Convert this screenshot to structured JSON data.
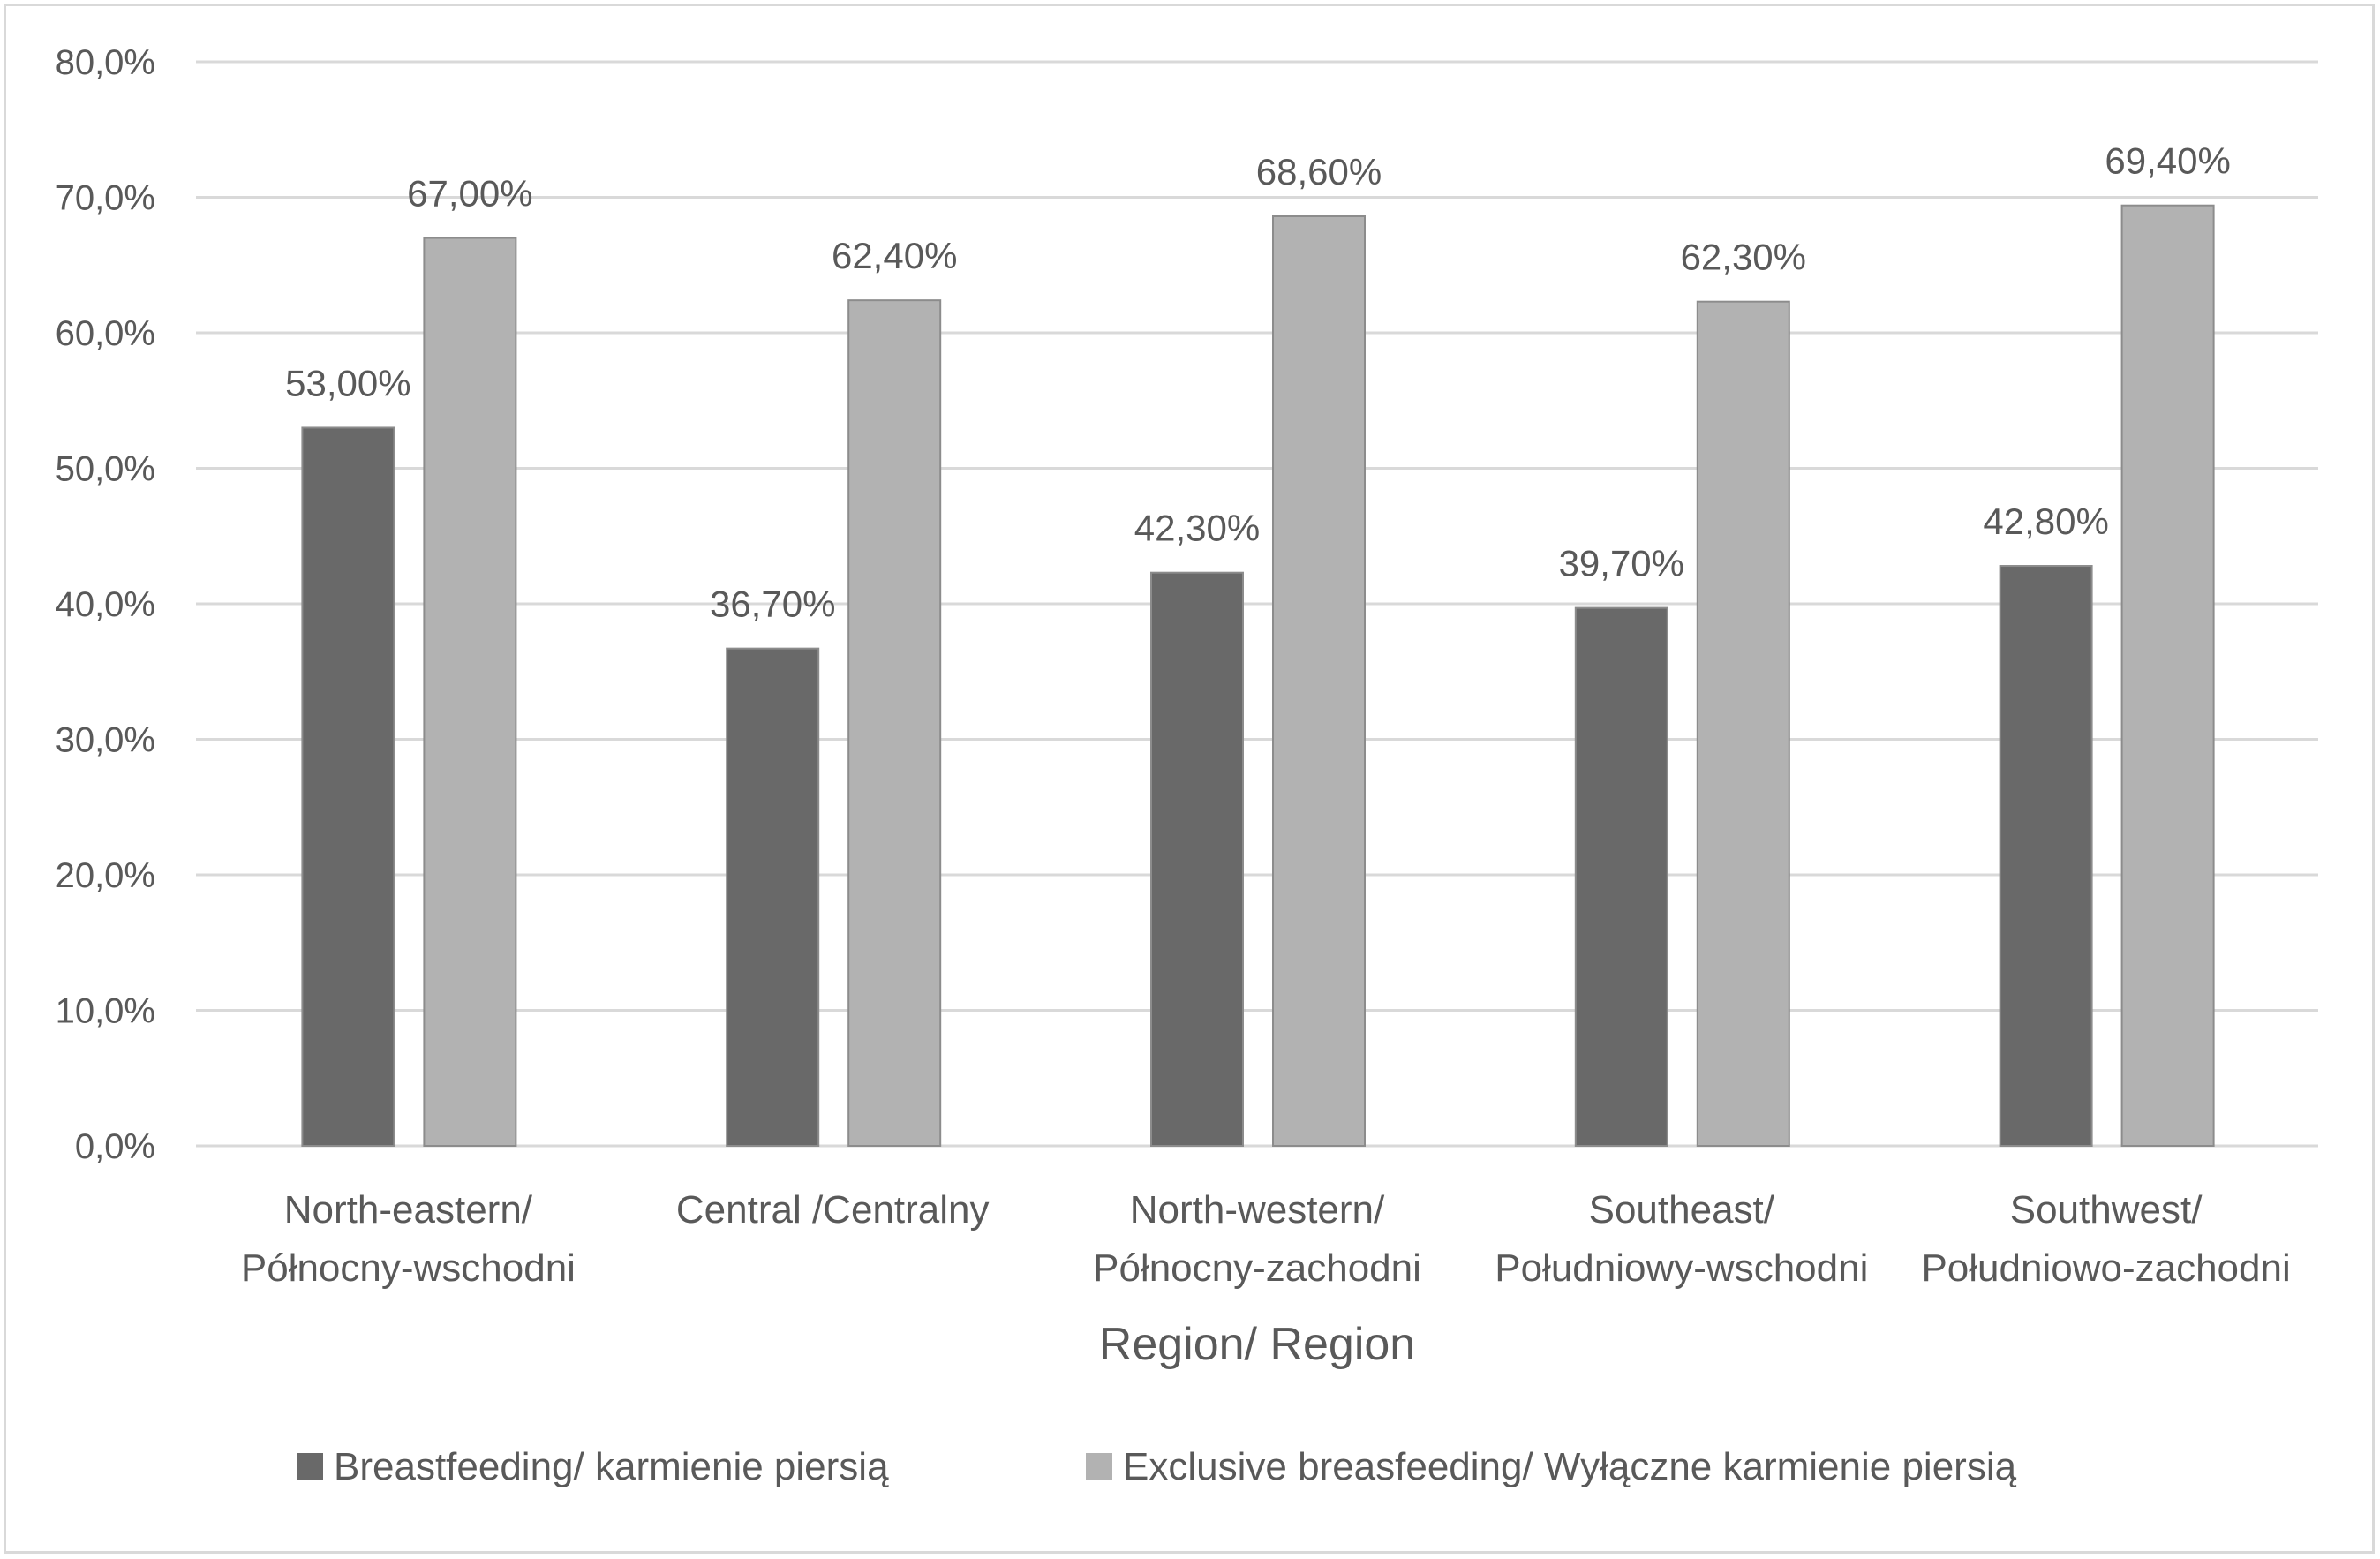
{
  "chart_data": {
    "type": "bar",
    "title": "",
    "xlabel": "Region/ Region",
    "ylabel": "",
    "ylim": [
      0,
      80
    ],
    "yticks": [
      0,
      10,
      20,
      30,
      40,
      50,
      60,
      70,
      80
    ],
    "ytick_labels": [
      "0,0%",
      "10,0%",
      "20,0%",
      "30,0%",
      "40,0%",
      "50,0%",
      "60,0%",
      "70,0%",
      "80,0%"
    ],
    "grid": true,
    "legend_position": "bottom",
    "categories": [
      [
        "North-eastern/",
        "Północny-wschodni"
      ],
      [
        "Central /Centralny"
      ],
      [
        "North-western/",
        "Północny-zachodni"
      ],
      [
        "Southeast/",
        "Południowy-wschodni"
      ],
      [
        "Southwest/",
        "Południowo-zachodni"
      ]
    ],
    "series": [
      {
        "name": "Breastfeeding/ karmienie piersią",
        "color": "#696969",
        "values": [
          53.0,
          36.7,
          42.3,
          39.7,
          42.8
        ],
        "labels": [
          "53,00%",
          "36,70%",
          "42,30%",
          "39,70%",
          "42,80%"
        ]
      },
      {
        "name": "Exclusive breasfeeding/ Wyłączne karmienie piersią",
        "color": "#b2b2b2",
        "values": [
          67.0,
          62.4,
          68.6,
          62.3,
          69.4
        ],
        "labels": [
          "67,00%",
          "62,40%",
          "68,60%",
          "62,30%",
          "69,40%"
        ]
      }
    ]
  }
}
